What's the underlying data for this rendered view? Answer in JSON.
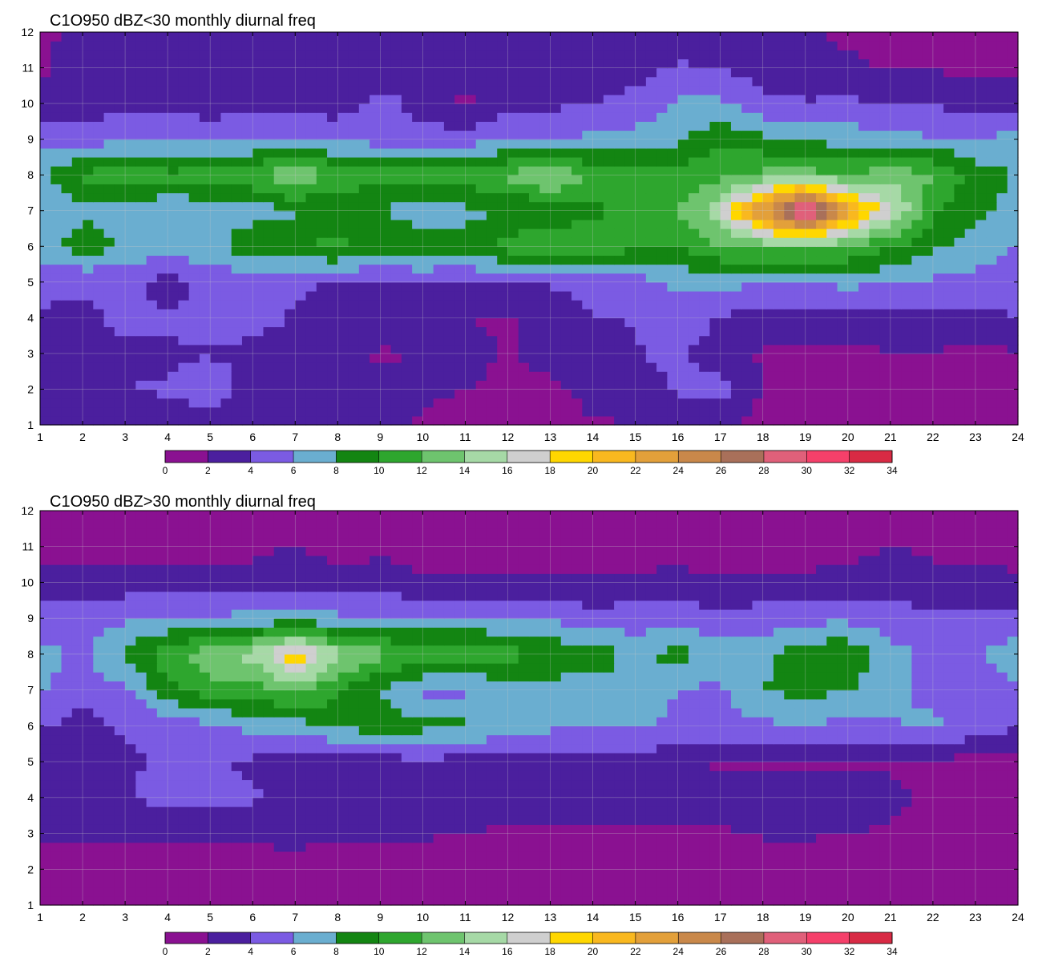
{
  "palette": {
    "levels": [
      0,
      2,
      4,
      6,
      8,
      10,
      12,
      14,
      16,
      18,
      20,
      22,
      24,
      26,
      28,
      30,
      32,
      34
    ],
    "colors": [
      "#8a1191",
      "#4b1f9e",
      "#7b5be3",
      "#6aaed0",
      "#138512",
      "#2ea62e",
      "#6ec46e",
      "#a6d9a6",
      "#cfcfcf",
      "#ffd700",
      "#f9b81f",
      "#e3a03a",
      "#c9884a",
      "#a9705a",
      "#e0607a",
      "#f5406a",
      "#d82a44"
    ],
    "contour_line": "#f2a33a",
    "grid": "#c7c7c7"
  },
  "chart_data": [
    {
      "type": "heatmap",
      "title": "C1O950 dBZ<30 monthly diurnal freq",
      "xlabel": "",
      "ylabel": "",
      "xlim": [
        1,
        24
      ],
      "ylim": [
        1,
        12
      ],
      "x_ticks": [
        "1",
        "2",
        "3",
        "4",
        "5",
        "6",
        "7",
        "8",
        "9",
        "10",
        "11",
        "12",
        "13",
        "14",
        "15",
        "16",
        "17",
        "18",
        "19",
        "20",
        "21",
        "22",
        "23",
        "24"
      ],
      "y_ticks": [
        "1",
        "2",
        "3",
        "4",
        "5",
        "6",
        "7",
        "8",
        "9",
        "10",
        "11",
        "12"
      ],
      "colorbar_ticks": [
        "0",
        "2",
        "4",
        "6",
        "8",
        "10",
        "12",
        "14",
        "16",
        "18",
        "20",
        "22",
        "24",
        "26",
        "28",
        "30",
        "32",
        "34"
      ],
      "z": [
        [
          3.0,
          2.5,
          2.6,
          2.8,
          3.0,
          2.8,
          2.9,
          3.2,
          3.0,
          1.8,
          1.6,
          1.5,
          1.6,
          1.8,
          2.0,
          2.1,
          2.0,
          1.6,
          1.8,
          1.5,
          1.6,
          1.8,
          1.5,
          1.0
        ],
        [
          3.2,
          3.0,
          4.0,
          4.2,
          5.2,
          3.2,
          3.0,
          3.3,
          2.6,
          2.2,
          2.0,
          1.8,
          1.6,
          2.5,
          2.6,
          4.5,
          5.0,
          1.8,
          1.6,
          1.6,
          1.7,
          1.9,
          1.8,
          1.6
        ],
        [
          3.4,
          3.2,
          3.6,
          3.7,
          3.9,
          3.6,
          3.3,
          3.0,
          1.6,
          2.4,
          2.5,
          1.8,
          2.6,
          3.5,
          3.8,
          4.6,
          2.6,
          1.8,
          1.6,
          1.8,
          1.9,
          2.0,
          1.4,
          1.9
        ],
        [
          3.8,
          3.6,
          4.5,
          4.4,
          4.6,
          4.6,
          3.8,
          3.5,
          3.6,
          3.6,
          2.0,
          1.9,
          2.4,
          3.9,
          4.1,
          5.4,
          3.8,
          2.8,
          2.6,
          2.8,
          3.0,
          3.2,
          3.5,
          3.9
        ],
        [
          4.4,
          4.2,
          4.6,
          3.0,
          4.6,
          4.6,
          4.4,
          3.6,
          3.6,
          3.8,
          4.0,
          4.2,
          4.2,
          4.7,
          5.1,
          6.4,
          6.5,
          6.3,
          6.4,
          6.5,
          6.3,
          5.7,
          5.2,
          5.2
        ],
        [
          7.2,
          9.2,
          7.8,
          7.2,
          7.2,
          9.8,
          9.6,
          10.8,
          9.2,
          9.8,
          8.6,
          11.1,
          12.6,
          11.0,
          10.6,
          10.2,
          12.2,
          12.6,
          12.6,
          12.3,
          10.2,
          8.4,
          7.2,
          5.8
        ],
        [
          6.2,
          7.5,
          6.6,
          6.2,
          6.6,
          7.0,
          7.8,
          8.3,
          8.1,
          6.5,
          7.6,
          7.8,
          8.2,
          9.6,
          10.6,
          12.0,
          15.5,
          24.5,
          33.0,
          23.0,
          16.6,
          10.2,
          8.4,
          7.4
        ],
        [
          7.4,
          10.5,
          11.2,
          10.6,
          10.8,
          11.6,
          14.4,
          11.4,
          10.9,
          10.8,
          11.2,
          12.4,
          14.6,
          11.2,
          10.6,
          10.8,
          11.6,
          12.6,
          13.0,
          11.8,
          13.6,
          12.2,
          9.2,
          7.8
        ],
        [
          5.6,
          5.2,
          5.4,
          5.6,
          5.4,
          5.6,
          6.4,
          5.6,
          5.2,
          4.8,
          5.0,
          5.8,
          6.0,
          6.4,
          6.8,
          7.6,
          9.6,
          8.4,
          7.6,
          7.2,
          6.6,
          6.2,
          6.1,
          6.6
        ],
        [
          3.0,
          3.1,
          3.4,
          3.2,
          3.1,
          3.2,
          2.8,
          3.0,
          4.8,
          3.2,
          1.6,
          3.2,
          3.6,
          4.0,
          4.6,
          6.3,
          6.3,
          4.6,
          4.2,
          4.4,
          4.0,
          3.8,
          3.0,
          3.2
        ],
        [
          1.6,
          3.0,
          2.8,
          3.0,
          3.2,
          3.0,
          4.2,
          3.2,
          3.0,
          2.8,
          2.8,
          2.9,
          2.6,
          2.8,
          3.2,
          4.2,
          4.0,
          3.0,
          2.4,
          2.2,
          1.8,
          1.8,
          1.6,
          1.8
        ],
        [
          1.6,
          2.6,
          2.8,
          2.6,
          2.4,
          1.8,
          2.4,
          2.2,
          2.6,
          2.4,
          2.2,
          2.6,
          2.4,
          2.4,
          2.8,
          3.2,
          2.6,
          2.4,
          2.2,
          1.8,
          1.6,
          1.8,
          1.6,
          1.6
        ]
      ]
    },
    {
      "type": "heatmap",
      "title": "C1O950 dBZ>30 monthly diurnal freq",
      "xlabel": "",
      "ylabel": "",
      "xlim": [
        1,
        24
      ],
      "ylim": [
        1,
        12
      ],
      "x_ticks": [
        "1",
        "2",
        "3",
        "4",
        "5",
        "6",
        "7",
        "8",
        "9",
        "10",
        "11",
        "12",
        "13",
        "14",
        "15",
        "16",
        "17",
        "18",
        "19",
        "20",
        "21",
        "22",
        "23",
        "24"
      ],
      "y_ticks": [
        "1",
        "2",
        "3",
        "4",
        "5",
        "6",
        "7",
        "8",
        "9",
        "10",
        "11",
        "12"
      ],
      "colorbar_ticks": [
        "0",
        "2",
        "4",
        "6",
        "8",
        "10",
        "12",
        "14",
        "16",
        "18",
        "20",
        "22",
        "24",
        "26",
        "28",
        "30",
        "32",
        "34"
      ],
      "z": [
        [
          0.6,
          0.6,
          0.6,
          0.6,
          0.6,
          0.6,
          0.6,
          0.6,
          0.6,
          0.6,
          0.6,
          0.6,
          0.6,
          0.6,
          0.6,
          0.6,
          0.6,
          0.6,
          0.6,
          0.6,
          0.6,
          0.6,
          0.6,
          0.6
        ],
        [
          0.8,
          0.8,
          0.8,
          0.8,
          0.8,
          0.8,
          0.8,
          0.8,
          0.8,
          0.8,
          0.8,
          0.8,
          0.8,
          0.8,
          0.8,
          0.8,
          0.8,
          0.8,
          0.8,
          0.8,
          0.8,
          0.8,
          0.8,
          0.8
        ],
        [
          2.2,
          2.4,
          2.6,
          2.6,
          2.6,
          2.6,
          2.8,
          2.5,
          2.4,
          2.2,
          2.0,
          1.8,
          1.8,
          1.8,
          1.8,
          1.8,
          1.8,
          2.2,
          2.2,
          2.0,
          1.8,
          1.6,
          1.4,
          1.4
        ],
        [
          3.0,
          3.6,
          3.8,
          4.8,
          4.8,
          4.2,
          3.8,
          3.4,
          3.0,
          3.6,
          2.8,
          2.8,
          2.6,
          2.8,
          2.6,
          2.8,
          2.8,
          3.0,
          3.0,
          3.0,
          2.4,
          1.6,
          1.4,
          1.4
        ],
        [
          2.8,
          3.2,
          3.6,
          4.4,
          4.4,
          3.6,
          3.2,
          2.2,
          3.0,
          3.6,
          3.0,
          3.0,
          3.0,
          3.0,
          3.0,
          2.4,
          1.8,
          1.8,
          1.8,
          1.8,
          1.8,
          1.6,
          1.4,
          1.4
        ],
        [
          4.2,
          3.4,
          4.2,
          4.6,
          5.4,
          6.6,
          6.8,
          8.6,
          9.0,
          8.6,
          8.4,
          7.2,
          6.4,
          6.0,
          6.4,
          5.6,
          5.4,
          5.6,
          6.0,
          5.4,
          5.8,
          6.4,
          5.2,
          4.2
        ],
        [
          6.2,
          4.6,
          5.6,
          9.0,
          11.4,
          11.0,
          12.8,
          10.4,
          7.8,
          5.6,
          5.6,
          6.8,
          7.2,
          6.8,
          7.2,
          6.0,
          5.6,
          8.2,
          8.4,
          8.2,
          6.4,
          5.4,
          4.6,
          5.6
        ],
        [
          6.6,
          5.8,
          8.6,
          11.2,
          13.6,
          14.6,
          19.6,
          14.6,
          12.6,
          11.4,
          11.2,
          10.8,
          9.4,
          9.8,
          6.8,
          9.2,
          6.8,
          7.2,
          9.4,
          9.6,
          6.8,
          5.2,
          5.4,
          7.8
        ],
        [
          5.0,
          4.6,
          5.8,
          6.0,
          6.2,
          6.6,
          6.8,
          6.4,
          6.2,
          6.2,
          6.2,
          6.2,
          5.8,
          4.6,
          5.0,
          5.0,
          4.8,
          5.0,
          5.4,
          5.6,
          5.0,
          4.6,
          4.4,
          4.4
        ],
        [
          2.6,
          3.0,
          3.0,
          3.0,
          3.0,
          3.0,
          3.0,
          3.0,
          3.0,
          2.4,
          2.4,
          2.4,
          2.4,
          2.6,
          2.6,
          2.8,
          2.2,
          2.4,
          2.6,
          2.8,
          2.8,
          2.6,
          2.6,
          2.4
        ],
        [
          1.6,
          1.0,
          0.8,
          0.8,
          0.8,
          1.4,
          2.2,
          1.0,
          1.6,
          1.0,
          1.0,
          0.8,
          0.8,
          0.8,
          0.8,
          0.8,
          0.8,
          0.8,
          0.8,
          1.2,
          2.2,
          1.6,
          1.4,
          1.2
        ],
        [
          0.8,
          0.8,
          0.8,
          0.8,
          0.8,
          0.8,
          0.8,
          0.8,
          0.8,
          0.8,
          0.8,
          0.8,
          0.8,
          0.8,
          0.8,
          0.8,
          0.8,
          0.8,
          0.8,
          0.8,
          0.8,
          0.8,
          0.8,
          0.8
        ]
      ]
    }
  ]
}
